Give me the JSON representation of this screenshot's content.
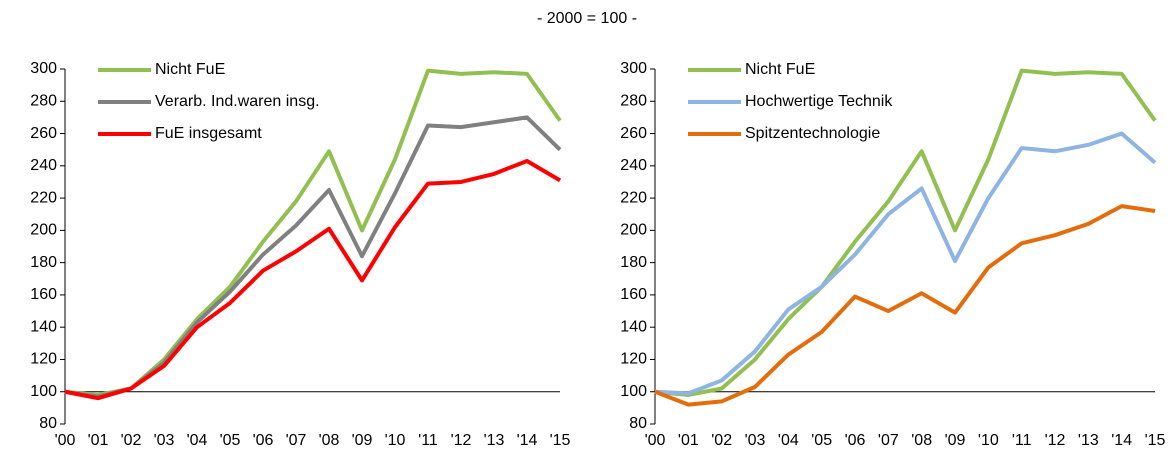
{
  "subtitle": "- 2000 = 100 -",
  "chart_data": [
    {
      "type": "line",
      "categories": [
        "'00",
        "'01",
        "'02",
        "'03",
        "'04",
        "'05",
        "'06",
        "'07",
        "'08",
        "'09",
        "'10",
        "'11",
        "'12",
        "'13",
        "'14",
        "'15"
      ],
      "ylim": [
        80,
        300
      ],
      "yticks": [
        80,
        100,
        120,
        140,
        160,
        180,
        200,
        220,
        240,
        260,
        280,
        300
      ],
      "x_axis_crosses": 100,
      "legend": "upper-left",
      "series": [
        {
          "name": "Nicht FuE",
          "color": "#92c050",
          "values": [
            100,
            98,
            102,
            120,
            145,
            165,
            193,
            218,
            249,
            200,
            244,
            299,
            297,
            298,
            297,
            268
          ]
        },
        {
          "name": "Verarb. Ind.waren insg.",
          "color": "#808080",
          "values": [
            100,
            97,
            102,
            118,
            143,
            162,
            185,
            203,
            225,
            184,
            223,
            265,
            264,
            267,
            270,
            250
          ]
        },
        {
          "name": "FuE insgesamt",
          "color": "#ff0000",
          "values": [
            100,
            96,
            102,
            116,
            140,
            155,
            175,
            187,
            201,
            169,
            202,
            229,
            230,
            235,
            243,
            231
          ]
        }
      ]
    },
    {
      "type": "line",
      "categories": [
        "'00",
        "'01",
        "'02",
        "'03",
        "'04",
        "'05",
        "'06",
        "'07",
        "'08",
        "'09",
        "'10",
        "'11",
        "'12",
        "'13",
        "'14",
        "'15"
      ],
      "ylim": [
        80,
        300
      ],
      "yticks": [
        80,
        100,
        120,
        140,
        160,
        180,
        200,
        220,
        240,
        260,
        280,
        300
      ],
      "x_axis_crosses": 100,
      "legend": "upper-left",
      "series": [
        {
          "name": "Nicht FuE",
          "color": "#92c050",
          "values": [
            100,
            98,
            102,
            120,
            145,
            165,
            193,
            218,
            249,
            200,
            244,
            299,
            297,
            298,
            297,
            268
          ]
        },
        {
          "name": "Hochwertige Technik",
          "color": "#8db4e2",
          "values": [
            100,
            99,
            107,
            125,
            151,
            165,
            185,
            210,
            226,
            181,
            220,
            251,
            249,
            253,
            260,
            242
          ]
        },
        {
          "name": "Spitzentechnologie",
          "color": "#e46c0a",
          "values": [
            100,
            92,
            94,
            103,
            123,
            137,
            159,
            150,
            161,
            149,
            177,
            192,
            197,
            204,
            215,
            212
          ]
        }
      ]
    }
  ]
}
